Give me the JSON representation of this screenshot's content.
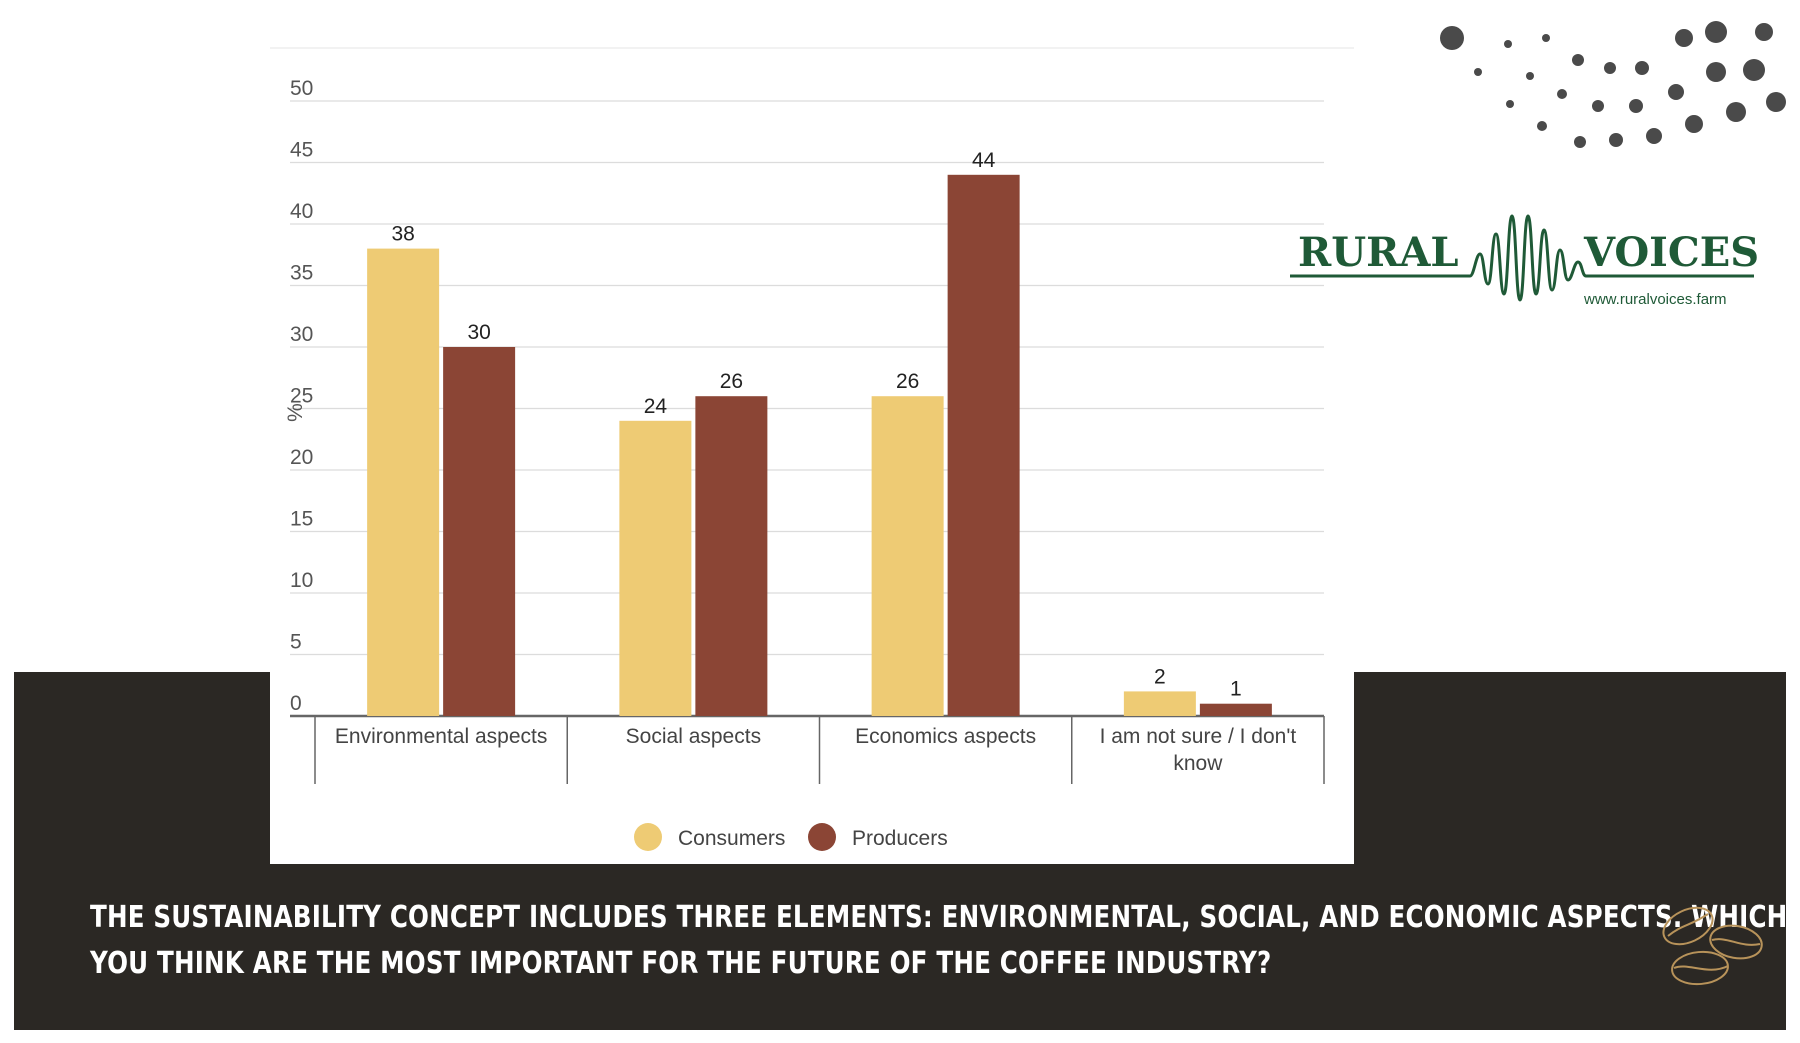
{
  "chart_data": {
    "type": "bar",
    "categories": [
      "Environmental aspects",
      "Social aspects",
      "Economics aspects",
      "I am not sure / I don't know"
    ],
    "category_lines": [
      [
        "Environmental aspects"
      ],
      [
        "Social aspects"
      ],
      [
        "Economics aspects"
      ],
      [
        "I am not sure / I don't",
        "know"
      ]
    ],
    "series": [
      {
        "name": "Consumers",
        "values": [
          38,
          24,
          26,
          2
        ],
        "color": "#eecb74"
      },
      {
        "name": "Producers",
        "values": [
          30,
          26,
          44,
          1
        ],
        "color": "#8b4535"
      }
    ],
    "ylabel": "%",
    "ylim": [
      0,
      50
    ],
    "yticks": [
      "0",
      "5",
      "10",
      "15",
      "20",
      "25",
      "30",
      "35",
      "40",
      "45",
      "50"
    ],
    "grid": true,
    "legend_position": "bottom"
  },
  "brand": {
    "name_left": "RURAL",
    "name_right": "VOICES",
    "url": "www.ruralvoices.farm",
    "color": "#1f5a37"
  },
  "caption": {
    "line1": "THE SUSTAINABILITY CONCEPT INCLUDES THREE ELEMENTS: ENVIRONMENTAL, SOCIAL, AND ECONOMIC ASPECTS. WHICH DO",
    "line2": "YOU THINK ARE THE MOST IMPORTANT FOR THE FUTURE OF THE COFFEE INDUSTRY?"
  },
  "decor": {
    "dots_icon": "dot-pattern-icon",
    "beans_icon": "coffee-beans-icon",
    "accent_dark": "#2b2824",
    "bean_outline": "#b8935a"
  }
}
